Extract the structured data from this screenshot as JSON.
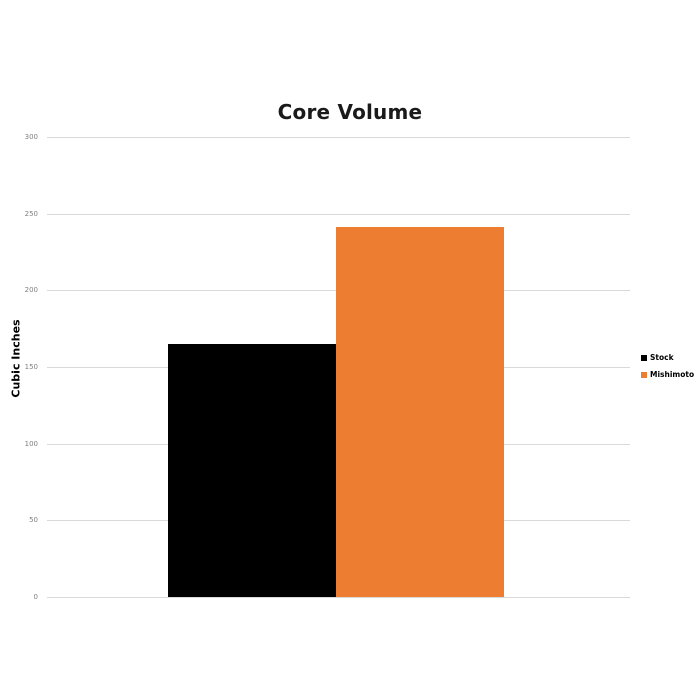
{
  "chart_data": {
    "type": "bar",
    "title": "Core Volume",
    "ylabel": "Cubic Inches",
    "xlabel": "",
    "categories": [
      "Stock",
      "Mishimoto"
    ],
    "values": [
      165,
      241
    ],
    "bar_colors": [
      "#000000",
      "#ED7D31"
    ],
    "ylim": [
      0,
      300
    ],
    "ytick_interval": 50,
    "ytick_labels": [
      "0",
      "50",
      "100",
      "150",
      "200",
      "250",
      "300"
    ],
    "grid": true,
    "legend": {
      "position": "right",
      "items": [
        {
          "label": "Stock",
          "color": "#000000"
        },
        {
          "label": "Mishimoto",
          "color": "#ED7D31"
        }
      ]
    },
    "colors": {
      "background": "#FFFFFF",
      "gridline": "#D9D9D9",
      "tick_label": "#808080",
      "title": "#1A1A1A",
      "axis_title": "#000000"
    }
  }
}
